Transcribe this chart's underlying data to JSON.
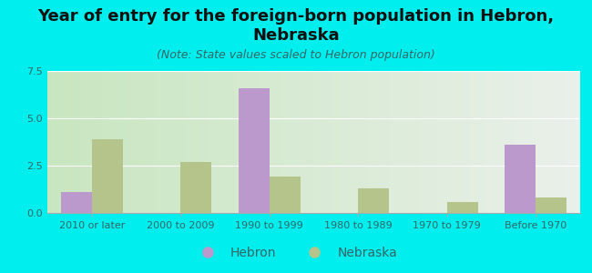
{
  "title": "Year of entry for the foreign-born population in Hebron, Nebraska",
  "subtitle": "(Note: State values scaled to Hebron population)",
  "categories": [
    "2010 or later",
    "2000 to 2009",
    "1990 to 1999",
    "1980 to 1989",
    "1970 to 1979",
    "Before 1970"
  ],
  "hebron_values": [
    1.1,
    0,
    6.6,
    0,
    0,
    3.6
  ],
  "nebraska_values": [
    3.9,
    2.7,
    1.9,
    1.3,
    0.6,
    0.8
  ],
  "hebron_color": "#bb99cc",
  "nebraska_color": "#b5c48a",
  "background_color": "#00eeee",
  "ylim": [
    0,
    7.5
  ],
  "yticks": [
    0,
    2.5,
    5,
    7.5
  ],
  "bar_width": 0.35,
  "title_fontsize": 13,
  "subtitle_fontsize": 9,
  "tick_fontsize": 8,
  "legend_fontsize": 10,
  "axis_text_color": "#336666",
  "title_color": "#111111"
}
